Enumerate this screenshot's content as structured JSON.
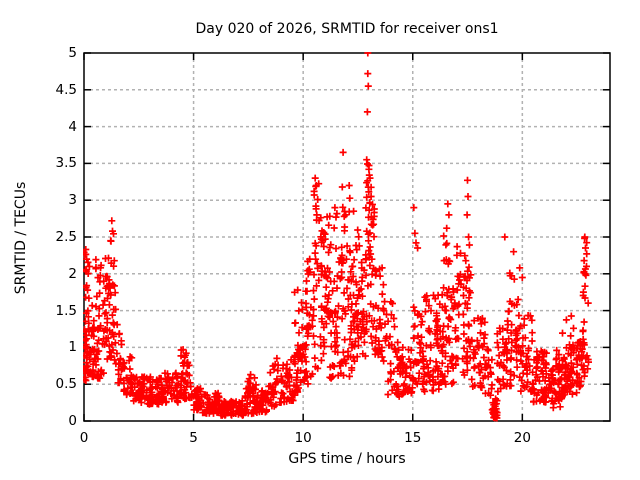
{
  "figure": {
    "background": "#ffffff",
    "text_color": "#000000"
  },
  "chart_data": {
    "type": "scatter",
    "title": "Day 020 of 2026, SRMTID for receiver ons1",
    "xlabel": "GPS time / hours",
    "ylabel": "SRMTID / TECUs",
    "xlim": [
      0,
      24
    ],
    "ylim": [
      0,
      5
    ],
    "xticks": [
      {
        "v": 0,
        "label": "0"
      },
      {
        "v": 5,
        "label": "5"
      },
      {
        "v": 10,
        "label": "10"
      },
      {
        "v": 15,
        "label": "15"
      },
      {
        "v": 20,
        "label": "20"
      }
    ],
    "yticks": [
      {
        "v": 0,
        "label": "0"
      },
      {
        "v": 0.5,
        "label": "0.5"
      },
      {
        "v": 1,
        "label": "1"
      },
      {
        "v": 1.5,
        "label": "1.5"
      },
      {
        "v": 2,
        "label": "2"
      },
      {
        "v": 2.5,
        "label": "2.5"
      },
      {
        "v": 3,
        "label": "3"
      },
      {
        "v": 3.5,
        "label": "3.5"
      },
      {
        "v": 4,
        "label": "4"
      },
      {
        "v": 4.5,
        "label": "4.5"
      },
      {
        "v": 5,
        "label": "5"
      }
    ],
    "grid": {
      "visible": true,
      "style": "dashed",
      "color": "#b2b2b2"
    },
    "border_color": "#000000",
    "legend": "none",
    "marker": {
      "shape": "plus",
      "color": "#ff0000",
      "size": 7
    },
    "series": [
      {
        "name": "SRMTID",
        "color": "#ff0000",
        "seed": 2026,
        "comment_bands": "dense scatter approximated as bands [hourStart, hourEnd, count, valueMin, valueMax, skew]; values in TECUs read from axes",
        "density_bands": [
          [
            0.0,
            0.15,
            22,
            0.55,
            1.15,
            1.2
          ],
          [
            0.0,
            0.12,
            12,
            1.15,
            2.3,
            1.0
          ],
          [
            0.1,
            0.45,
            30,
            0.6,
            1.3,
            1.4
          ],
          [
            0.15,
            0.45,
            10,
            1.3,
            2.2,
            1.2
          ],
          [
            0.45,
            0.9,
            34,
            0.55,
            1.75,
            1.3
          ],
          [
            0.5,
            0.85,
            8,
            1.75,
            2.2,
            1.0
          ],
          [
            0.9,
            1.2,
            26,
            0.7,
            1.9,
            1.2
          ],
          [
            0.95,
            1.15,
            6,
            1.9,
            2.45,
            1.0
          ],
          [
            1.2,
            1.45,
            20,
            0.8,
            2.0,
            1.2
          ],
          [
            1.2,
            1.4,
            5,
            2.0,
            2.65,
            1.0
          ],
          [
            1.45,
            1.8,
            22,
            0.5,
            1.35,
            1.3
          ],
          [
            1.8,
            2.2,
            26,
            0.35,
            0.9,
            1.3
          ],
          [
            2.2,
            2.8,
            42,
            0.25,
            0.62,
            1.2
          ],
          [
            2.8,
            3.6,
            58,
            0.22,
            0.6,
            1.2
          ],
          [
            3.6,
            4.3,
            46,
            0.25,
            0.68,
            1.2
          ],
          [
            4.3,
            4.9,
            34,
            0.3,
            0.8,
            1.2
          ],
          [
            4.35,
            4.75,
            8,
            0.78,
            1.0,
            1.0
          ],
          [
            4.9,
            5.4,
            36,
            0.15,
            0.45,
            1.2
          ],
          [
            5.4,
            6.2,
            55,
            0.1,
            0.38,
            1.3
          ],
          [
            6.2,
            7.3,
            70,
            0.07,
            0.28,
            1.2
          ],
          [
            7.3,
            7.95,
            40,
            0.1,
            0.45,
            1.3
          ],
          [
            7.35,
            7.9,
            12,
            0.4,
            0.6,
            1.0
          ],
          [
            7.95,
            8.4,
            28,
            0.12,
            0.42,
            1.2
          ],
          [
            8.4,
            9.0,
            32,
            0.2,
            0.78,
            1.2
          ],
          [
            9.0,
            9.55,
            34,
            0.25,
            0.85,
            1.2
          ],
          [
            9.55,
            10.0,
            34,
            0.35,
            1.1,
            1.2
          ],
          [
            9.6,
            9.98,
            8,
            1.1,
            1.75,
            1.1
          ],
          [
            10.0,
            10.45,
            30,
            0.5,
            1.6,
            1.2
          ],
          [
            10.05,
            10.4,
            8,
            1.6,
            2.2,
            1.0
          ],
          [
            10.45,
            10.95,
            40,
            0.7,
            2.6,
            1.15
          ],
          [
            10.5,
            10.85,
            8,
            2.6,
            3.25,
            1.0
          ],
          [
            10.95,
            11.6,
            55,
            0.55,
            2.3,
            1.2
          ],
          [
            11.0,
            11.55,
            10,
            2.3,
            2.88,
            1.0
          ],
          [
            11.6,
            12.25,
            58,
            0.6,
            2.6,
            1.1
          ],
          [
            11.65,
            12.2,
            8,
            2.6,
            3.25,
            1.0
          ],
          [
            12.25,
            12.85,
            55,
            0.8,
            2.6,
            1.0
          ],
          [
            12.85,
            13.25,
            45,
            1.0,
            3.0,
            0.95
          ],
          [
            12.88,
            13.15,
            9,
            3.0,
            3.55,
            1.0
          ],
          [
            13.25,
            13.75,
            34,
            0.8,
            2.1,
            1.1
          ],
          [
            13.75,
            14.35,
            34,
            0.35,
            1.6,
            1.3
          ],
          [
            14.35,
            15.0,
            44,
            0.3,
            1.0,
            1.2
          ],
          [
            15.0,
            15.35,
            24,
            0.5,
            1.55,
            1.2
          ],
          [
            15.35,
            16.3,
            68,
            0.4,
            1.45,
            1.2
          ],
          [
            15.5,
            16.25,
            12,
            1.45,
            1.75,
            1.0
          ],
          [
            16.3,
            16.95,
            54,
            0.5,
            1.9,
            1.2
          ],
          [
            16.4,
            16.85,
            8,
            1.9,
            2.55,
            1.0
          ],
          [
            16.95,
            17.65,
            54,
            0.55,
            2.0,
            1.2
          ],
          [
            17.0,
            17.6,
            8,
            2.0,
            2.45,
            1.0
          ],
          [
            17.65,
            18.3,
            38,
            0.45,
            1.4,
            1.3
          ],
          [
            18.3,
            18.62,
            20,
            0.35,
            1.0,
            1.2
          ],
          [
            18.6,
            18.85,
            18,
            0.03,
            0.4,
            1.4
          ],
          [
            18.68,
            18.8,
            10,
            0.03,
            0.15,
            1.0
          ],
          [
            18.85,
            19.3,
            30,
            0.4,
            1.3,
            1.2
          ],
          [
            19.3,
            19.9,
            40,
            0.45,
            1.6,
            1.2
          ],
          [
            19.4,
            19.85,
            6,
            1.6,
            2.05,
            1.0
          ],
          [
            19.9,
            20.5,
            44,
            0.4,
            1.45,
            1.3
          ],
          [
            20.5,
            21.2,
            54,
            0.25,
            0.95,
            1.2
          ],
          [
            21.2,
            21.9,
            54,
            0.18,
            0.8,
            1.2
          ],
          [
            21.5,
            21.85,
            6,
            0.8,
            1.3,
            1.0
          ],
          [
            21.9,
            22.5,
            48,
            0.35,
            1.0,
            1.2
          ],
          [
            22.0,
            22.4,
            6,
            1.0,
            1.45,
            1.0
          ],
          [
            22.5,
            22.85,
            28,
            0.45,
            1.1,
            1.1
          ],
          [
            22.75,
            23.05,
            16,
            0.6,
            1.9,
            1.0
          ],
          [
            22.8,
            23.0,
            8,
            1.9,
            2.5,
            1.0
          ]
        ],
        "comment_points": "distinct outlier/peak points [GPS hour, TECUs] read from the plot",
        "points": [
          [
            0.08,
            2.33
          ],
          [
            0.12,
            2.2
          ],
          [
            0.1,
            2.05
          ],
          [
            1.27,
            2.72
          ],
          [
            1.3,
            2.58
          ],
          [
            1.22,
            2.45
          ],
          [
            4.52,
            0.97
          ],
          [
            7.6,
            0.63
          ],
          [
            8.8,
            0.85
          ],
          [
            9.75,
            1.78
          ],
          [
            10.3,
            2.2
          ],
          [
            10.55,
            3.3
          ],
          [
            10.6,
            3.2
          ],
          [
            10.5,
            3.12
          ],
          [
            10.58,
            2.92
          ],
          [
            10.62,
            2.8
          ],
          [
            11.45,
            2.9
          ],
          [
            11.5,
            2.77
          ],
          [
            11.82,
            3.65
          ],
          [
            12.1,
            3.2
          ],
          [
            12.3,
            2.85
          ],
          [
            12.9,
            3.55
          ],
          [
            12.95,
            5.0
          ],
          [
            12.95,
            4.72
          ],
          [
            12.97,
            4.55
          ],
          [
            12.93,
            4.2
          ],
          [
            13.0,
            3.42
          ],
          [
            13.05,
            3.3
          ],
          [
            13.1,
            3.05
          ],
          [
            13.3,
            2.05
          ],
          [
            14.0,
            1.62
          ],
          [
            15.05,
            2.9
          ],
          [
            15.1,
            2.55
          ],
          [
            15.15,
            2.42
          ],
          [
            15.22,
            2.35
          ],
          [
            16.6,
            2.95
          ],
          [
            16.65,
            2.8
          ],
          [
            16.55,
            2.62
          ],
          [
            17.5,
            3.27
          ],
          [
            17.52,
            3.05
          ],
          [
            17.48,
            2.8
          ],
          [
            17.55,
            2.5
          ],
          [
            18.73,
            0.05
          ],
          [
            18.76,
            0.12
          ],
          [
            18.7,
            0.22
          ],
          [
            18.78,
            0.3
          ],
          [
            19.2,
            2.5
          ],
          [
            19.6,
            2.3
          ],
          [
            19.88,
            2.08
          ],
          [
            20.0,
            1.95
          ],
          [
            22.85,
            2.5
          ],
          [
            22.88,
            2.35
          ],
          [
            22.82,
            2.18
          ],
          [
            22.9,
            1.98
          ]
        ]
      }
    ]
  }
}
